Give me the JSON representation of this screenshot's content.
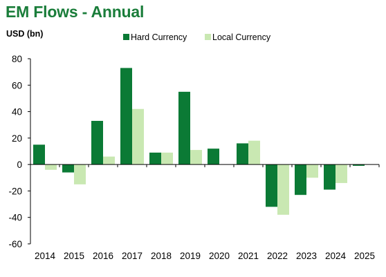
{
  "chart_data": {
    "type": "bar",
    "title": "EM Flows - Annual",
    "ylabel": "USD (bn)",
    "categories": [
      "2014",
      "2015",
      "2016",
      "2017",
      "2018",
      "2019",
      "2020",
      "2021",
      "2022",
      "2023",
      "2024",
      "2025"
    ],
    "series": [
      {
        "name": "Hard Currency",
        "color": "#0b7a35",
        "values": [
          15,
          -6,
          33,
          73,
          9,
          55,
          12,
          16,
          -32,
          -23,
          -19,
          -1
        ]
      },
      {
        "name": "Local Currency",
        "color": "#c9e8b2",
        "values": [
          -4,
          -15,
          6,
          42,
          9,
          11,
          0,
          18,
          -38,
          -10,
          -14,
          0
        ]
      }
    ],
    "ylim": [
      -60,
      80
    ],
    "yticks": [
      -60,
      -40,
      -20,
      0,
      20,
      40,
      60,
      80
    ],
    "yticklabels": [
      "-60",
      "-40",
      "-20",
      "0",
      "20",
      "40",
      "60",
      "80"
    ],
    "legend_position": "top",
    "grid": false
  }
}
